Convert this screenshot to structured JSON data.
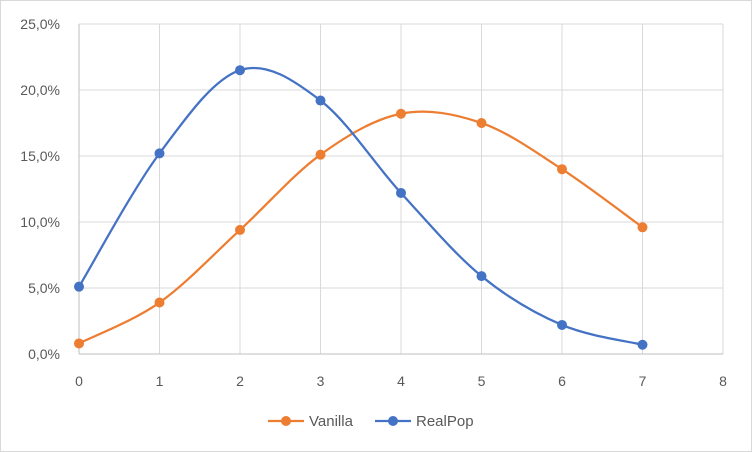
{
  "chart_data": {
    "type": "line",
    "smooth": true,
    "title": "",
    "xlabel": "",
    "ylabel": "",
    "xlim": [
      0,
      8
    ],
    "ylim": [
      0,
      25
    ],
    "x_ticks": [
      0,
      1,
      2,
      3,
      4,
      5,
      6,
      7,
      8
    ],
    "y_ticks": [
      0,
      5,
      10,
      15,
      20,
      25
    ],
    "x_tick_labels": [
      "0",
      "1",
      "2",
      "3",
      "4",
      "5",
      "6",
      "7",
      "8"
    ],
    "y_tick_labels": [
      "0,0%",
      "5,0%",
      "10,0%",
      "15,0%",
      "20,0%",
      "25,0%"
    ],
    "grid": "vertical and horizontal",
    "legend_position": "bottom",
    "series": [
      {
        "name": "Vanilla",
        "color": "#ED7D31",
        "x": [
          0,
          1,
          2,
          3,
          4,
          5,
          6,
          7
        ],
        "y": [
          0.8,
          3.9,
          9.4,
          15.1,
          18.2,
          17.5,
          14.0,
          9.6
        ]
      },
      {
        "name": "RealPop",
        "color": "#4472C4",
        "x": [
          0,
          1,
          2,
          3,
          4,
          5,
          6,
          7
        ],
        "y": [
          5.1,
          15.2,
          21.5,
          19.2,
          12.2,
          5.9,
          2.2,
          0.7
        ]
      }
    ]
  }
}
